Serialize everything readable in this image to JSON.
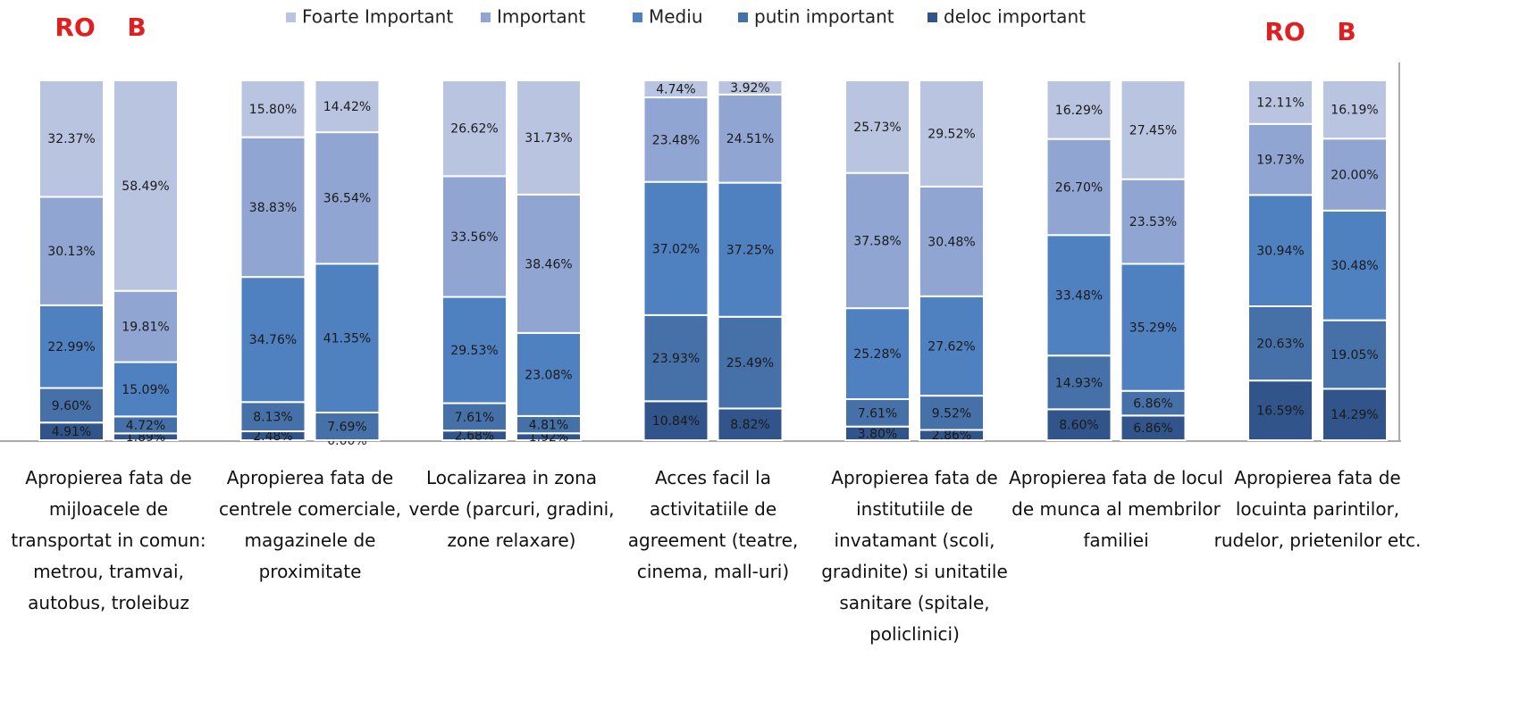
{
  "chart_data": {
    "type": "stacked_bar",
    "legend": "top",
    "ylim": [
      0,
      100
    ],
    "bar_labels": [
      "RO",
      "B"
    ],
    "categories": [
      "Apropierea fata de mijloacele de transportat in comun: metrou, tramvai, autobus, troleibuz",
      "Apropierea fata de centrele comerciale, magazinele de proximitate",
      "Localizarea in zona verde (parcuri, gradini, zone relaxare)",
      "Acces facil la activitatiile de agreement (teatre, cinema, mall-uri)",
      "Apropierea fata de institutiile de invatamant (scoli, gradinite) si unitatile sanitare (spitale, policlinici)",
      "Apropierea fata de locul de munca al membrilor familiei",
      "Apropierea fata de locuinta parintilor, rudelor, prietenilor etc."
    ],
    "series": [
      {
        "name": "Foarte Important",
        "color": "#b9c5e0",
        "values": [
          [
            32.37,
            58.49
          ],
          [
            15.8,
            14.42
          ],
          [
            26.62,
            31.73
          ],
          [
            4.74,
            3.92
          ],
          [
            25.73,
            29.52
          ],
          [
            16.29,
            27.45
          ],
          [
            12.11,
            16.19
          ]
        ],
        "value_labels": [
          [
            "32.37%",
            "58.49%"
          ],
          [
            "15.80%",
            "14.42%"
          ],
          [
            "26.62%",
            "31.73%"
          ],
          [
            "4.74%",
            "3.92%"
          ],
          [
            "25.73%",
            "29.52%"
          ],
          [
            "16.29%",
            "27.45%"
          ],
          [
            "12.11%",
            "16.19%"
          ]
        ]
      },
      {
        "name": "Important",
        "color": "#90a5d1",
        "values": [
          [
            30.13,
            19.81
          ],
          [
            38.83,
            36.54
          ],
          [
            33.56,
            38.46
          ],
          [
            23.48,
            24.51
          ],
          [
            37.58,
            30.48
          ],
          [
            26.7,
            23.53
          ],
          [
            19.73,
            20.0
          ]
        ],
        "value_labels": [
          [
            "30.13%",
            "19.81%"
          ],
          [
            "38.83%",
            "36.54%"
          ],
          [
            "33.56%",
            "38.46%"
          ],
          [
            "23.48%",
            "24.51%"
          ],
          [
            "37.58%",
            "30.48%"
          ],
          [
            "26.70%",
            "23.53%"
          ],
          [
            "19.73%",
            "20.00%"
          ]
        ]
      },
      {
        "name": "Mediu",
        "color": "#4f80bf",
        "values": [
          [
            22.99,
            15.09
          ],
          [
            34.76,
            41.35
          ],
          [
            29.53,
            23.08
          ],
          [
            37.02,
            37.25
          ],
          [
            25.28,
            27.62
          ],
          [
            33.48,
            35.29
          ],
          [
            30.94,
            30.48
          ]
        ],
        "value_labels": [
          [
            "22.99%",
            "15.09%"
          ],
          [
            "34.76%",
            "41.35%"
          ],
          [
            "29.53%",
            "23.08%"
          ],
          [
            "37.02%",
            "37.25%"
          ],
          [
            "25.28%",
            "27.62%"
          ],
          [
            "33.48%",
            "35.29%"
          ],
          [
            "30.94%",
            "30.48%"
          ]
        ]
      },
      {
        "name": "putin important",
        "color": "#4670a8",
        "values": [
          [
            9.6,
            4.72
          ],
          [
            8.13,
            7.69
          ],
          [
            7.61,
            4.81
          ],
          [
            23.93,
            25.49
          ],
          [
            7.61,
            9.52
          ],
          [
            14.93,
            6.86
          ],
          [
            20.63,
            19.05
          ]
        ],
        "value_labels": [
          [
            "9.60%",
            "4.72%"
          ],
          [
            "8.13%",
            "7.69%"
          ],
          [
            "7.61%",
            "4.81%"
          ],
          [
            "23.93%",
            "25.49%"
          ],
          [
            "7.61%",
            "9.52%"
          ],
          [
            "14.93%",
            "6.86%"
          ],
          [
            "20.63%",
            "19.05%"
          ]
        ]
      },
      {
        "name": "deloc important",
        "color": "#31558a",
        "values": [
          [
            4.91,
            1.89
          ],
          [
            2.48,
            0.0
          ],
          [
            2.68,
            1.92
          ],
          [
            10.84,
            8.82
          ],
          [
            3.8,
            2.86
          ],
          [
            8.6,
            6.86
          ],
          [
            16.59,
            14.29
          ]
        ],
        "value_labels": [
          [
            "4.91%",
            "1.89%"
          ],
          [
            "2.48%",
            "0.00%"
          ],
          [
            "2.68%",
            "1.92%"
          ],
          [
            "10.84%",
            "8.82%"
          ],
          [
            "3.80%",
            "2.86%"
          ],
          [
            "8.60%",
            "6.86%"
          ],
          [
            "16.59%",
            "14.29%"
          ]
        ]
      }
    ]
  }
}
